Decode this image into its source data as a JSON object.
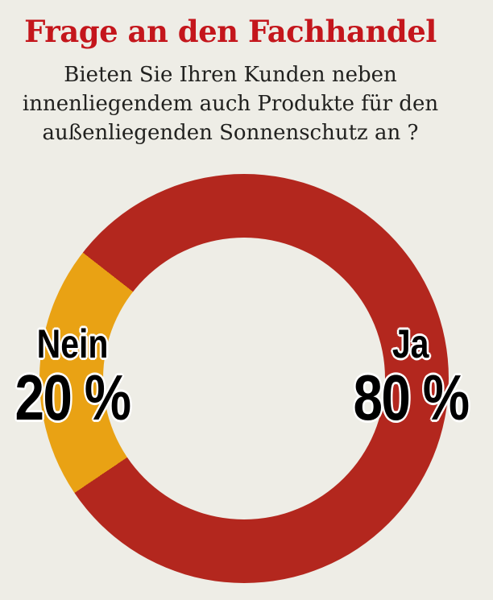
{
  "page": {
    "background_color": "#EEEDE6"
  },
  "header": {
    "title": "Frage an den Fachhandel",
    "title_color": "#C4161C",
    "question_lines": [
      "Bieten Sie Ihren Kunden neben",
      "innenliegendem auch Produkte für den",
      "außenliegenden Sonnenschutz an ?"
    ]
  },
  "chart_data": {
    "type": "pie",
    "variant": "donut",
    "title": "Frage an den Fachhandel",
    "categories": [
      "Ja",
      "Nein"
    ],
    "values": [
      80,
      20
    ],
    "unit": "%",
    "colors": {
      "Ja": "#B3271E",
      "Nein": "#E9A214"
    },
    "hole_color": "#EEEDE6",
    "start_angle_deg": 308,
    "legend_position": "on-slice",
    "labels": [
      {
        "name": "Ja",
        "value_label": "80 %"
      },
      {
        "name": "Nein",
        "value_label": "20 %"
      }
    ]
  }
}
